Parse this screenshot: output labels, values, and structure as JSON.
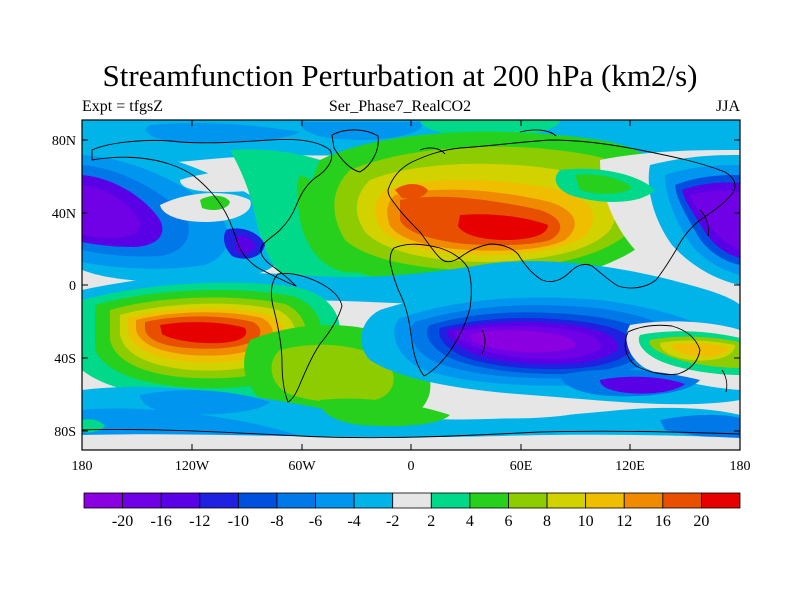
{
  "title": "Streamfunction Perturbation at 200 hPa (km2/s)",
  "subtitle_left": "Expt = tfgsZ",
  "subtitle_center": "Ser_Phase7_RealCO2",
  "subtitle_right": "JJA",
  "map": {
    "projection": "cylindrical equidistant",
    "lon_range": [
      -180,
      180
    ],
    "lat_range": [
      -90,
      90
    ],
    "lat_labels": [
      "80N",
      "40N",
      "0",
      "40S",
      "80S"
    ],
    "lon_labels": [
      "180",
      "120W",
      "60W",
      "0",
      "60E",
      "120E",
      "180"
    ]
  },
  "colorbar": {
    "labels": [
      "-20",
      "-16",
      "-12",
      "-10",
      "-8",
      "-6",
      "-4",
      "-2",
      "2",
      "4",
      "6",
      "8",
      "10",
      "12",
      "16",
      "20"
    ],
    "colors": [
      "#8a00e0",
      "#7000e6",
      "#5a00e6",
      "#2020e0",
      "#0050e0",
      "#0078e8",
      "#0096f0",
      "#00b4ea",
      "#e6e6e6",
      "#00d88a",
      "#28d01e",
      "#8ccc00",
      "#d2d200",
      "#f0be00",
      "#f08a00",
      "#e85000",
      "#e60000"
    ]
  },
  "field_features": [
    {
      "name": "north-pacific-low",
      "value": -16
    },
    {
      "name": "east-asia-low",
      "value": -16
    },
    {
      "name": "eurasia-high",
      "value": 20
    },
    {
      "name": "south-pacific-high",
      "value": 20
    },
    {
      "name": "indian-ocean-low",
      "value": -20
    },
    {
      "name": "australia-high",
      "value": 10
    }
  ]
}
